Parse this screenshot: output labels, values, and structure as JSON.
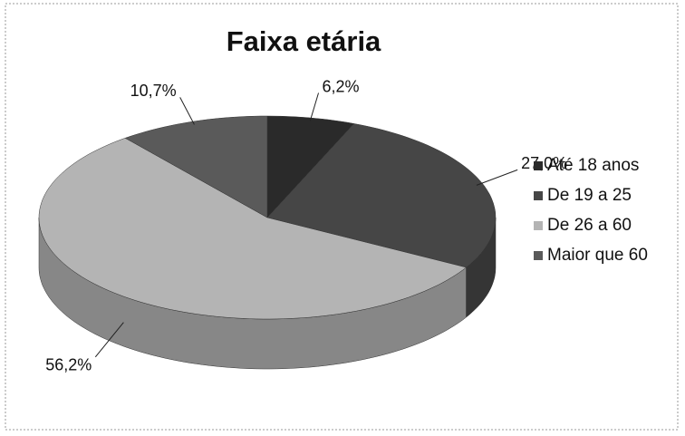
{
  "chart_data": {
    "type": "pie3d",
    "title": "Faixa etária",
    "categories": [
      "Até 18 anos",
      "De 19 a  25",
      "De 26 a 60",
      "Maior que 60"
    ],
    "values": [
      6.2,
      27.0,
      56.2,
      10.7
    ],
    "value_labels": [
      "6,2%",
      "27,0%",
      "56,2%",
      "10,7%"
    ],
    "colors": [
      "#2a2a2a",
      "#464646",
      "#b4b4b4",
      "#5a5a5a"
    ],
    "legend": "right"
  }
}
